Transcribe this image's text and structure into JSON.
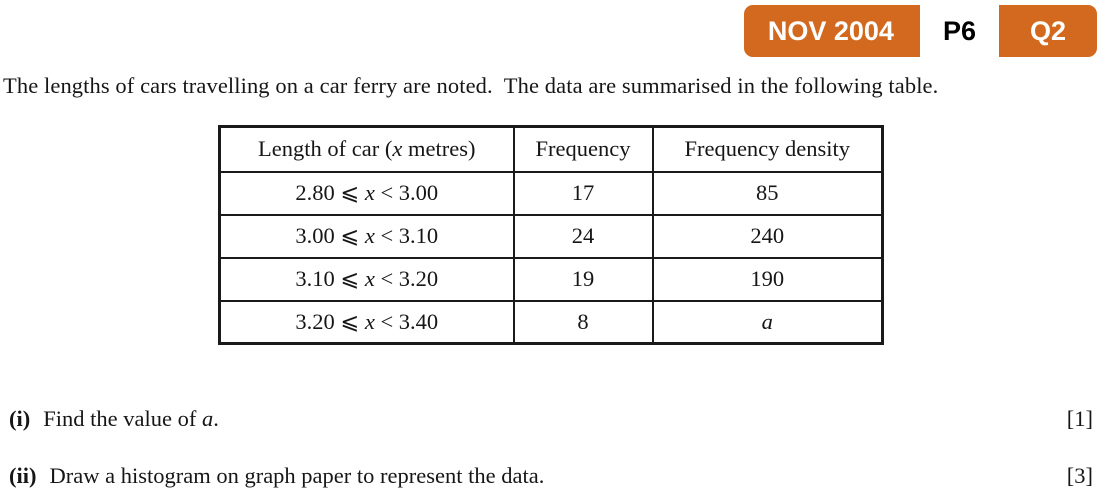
{
  "badge": {
    "session": "NOV 2004",
    "paper": "P6",
    "question": "Q2",
    "bg_color": "#d2691e",
    "session_text_color": "#ffffff",
    "paper_bg_color": "#ffffff",
    "paper_text_color": "#000000"
  },
  "intro": "The lengths of cars travelling on a car ferry are noted.  The data are summarised in the following table.",
  "table": {
    "headers": {
      "length": {
        "pre": "Length of car (",
        "var": "x",
        "post": " metres)"
      },
      "frequency": "Frequency",
      "density": "Frequency density"
    },
    "rows": [
      {
        "interval": {
          "pre": "2.80 ⩽ ",
          "var": "x",
          "post": " < 3.00"
        },
        "frequency": "17",
        "density": "85"
      },
      {
        "interval": {
          "pre": "3.00 ⩽ ",
          "var": "x",
          "post": " < 3.10"
        },
        "frequency": "24",
        "density": "240"
      },
      {
        "interval": {
          "pre": "3.10 ⩽ ",
          "var": "x",
          "post": " < 3.20"
        },
        "frequency": "19",
        "density": "190"
      },
      {
        "interval": {
          "pre": "3.20 ⩽ ",
          "var": "x",
          "post": " < 3.40"
        },
        "frequency": "8",
        "density": "a"
      }
    ]
  },
  "questions": [
    {
      "label": "(i)",
      "text": "Find the value of ",
      "var": "a",
      "suffix": ".",
      "marks": "[1]"
    },
    {
      "label": "(ii)",
      "text": "Draw a histogram on graph paper to represent the data.",
      "marks": "[3]"
    }
  ]
}
